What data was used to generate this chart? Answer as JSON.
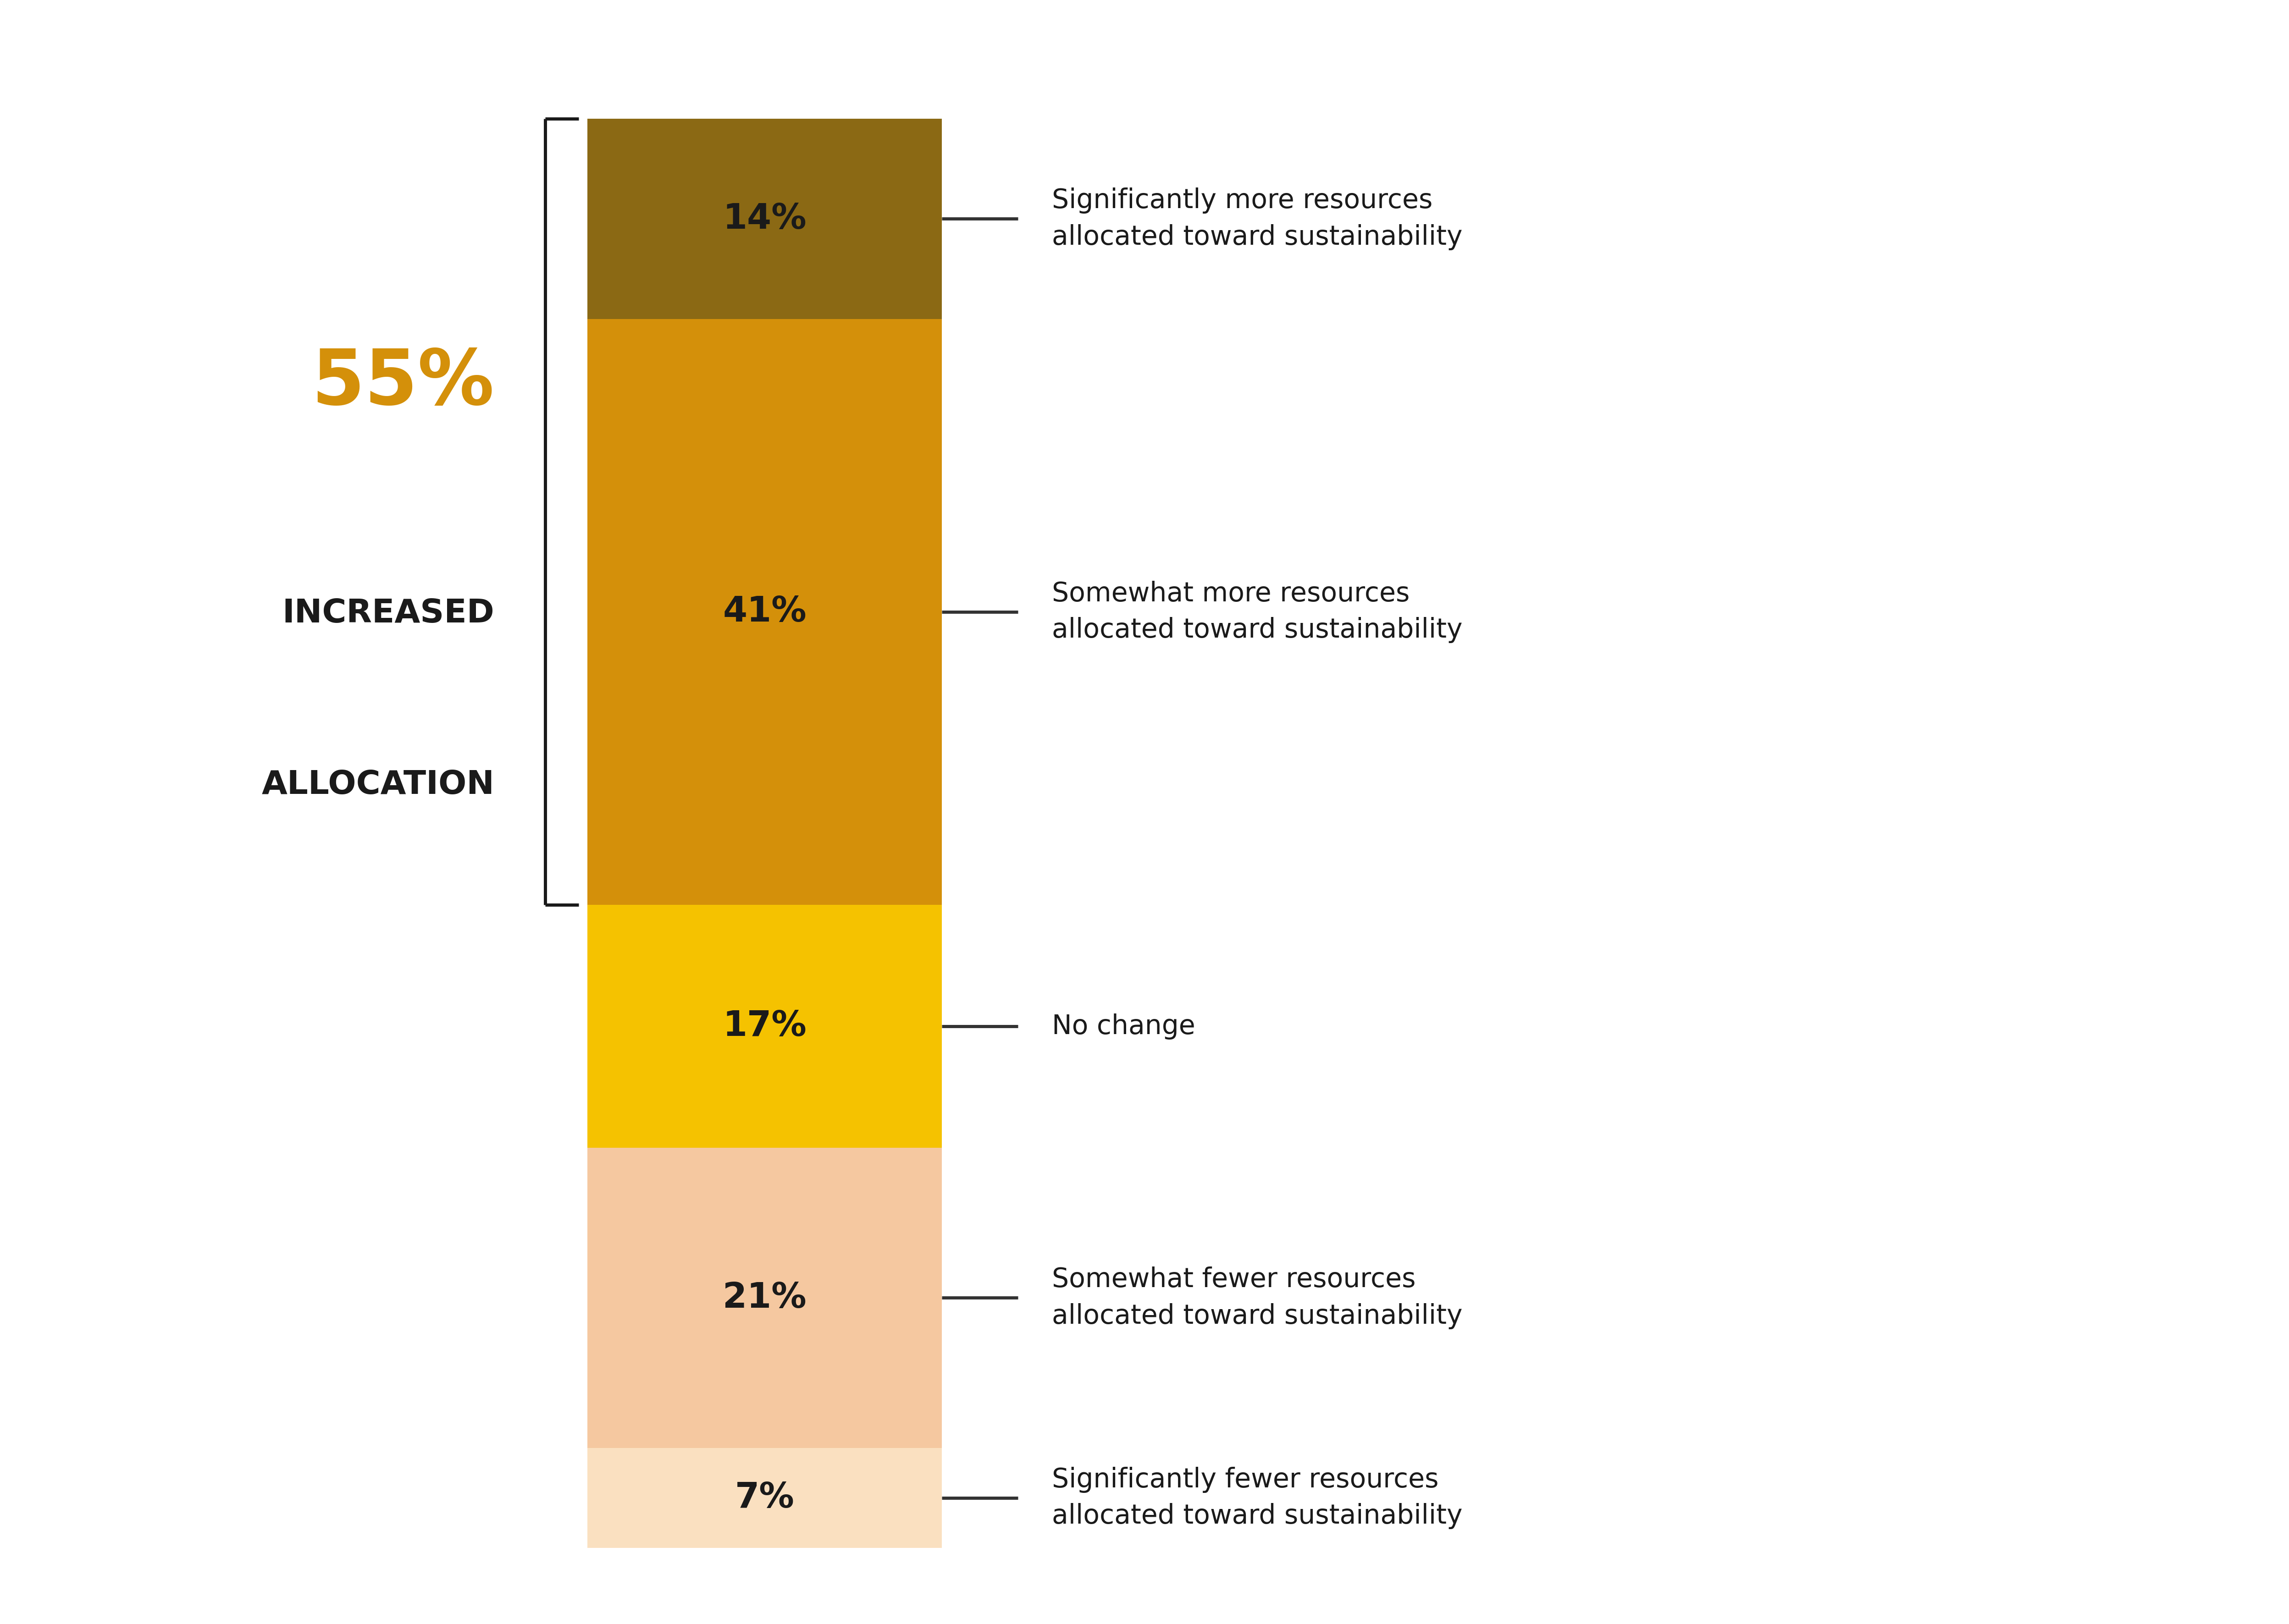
{
  "segments": [
    {
      "label": "14%",
      "value": 14,
      "color": "#8B6914",
      "annotation": "Significantly more resources\nallocated toward sustainability"
    },
    {
      "label": "41%",
      "value": 41,
      "color": "#D4900A",
      "annotation": "Somewhat more resources\nallocated toward sustainability"
    },
    {
      "label": "17%",
      "value": 17,
      "color": "#F5C200",
      "annotation": "No change"
    },
    {
      "label": "21%",
      "value": 21,
      "color": "#F5C8A0",
      "annotation": "Somewhat fewer resources\nallocated toward sustainability"
    },
    {
      "label": "7%",
      "value": 7,
      "color": "#FAE0C0",
      "annotation": "Significantly fewer resources\nallocated toward sustainability"
    }
  ],
  "big_number": "55%",
  "big_label_line1": "INCREASED",
  "big_label_line2": "ALLOCATION",
  "big_number_color": "#D4900A",
  "big_label_color": "#1A1A1A",
  "annotation_color": "#1A1A1A",
  "label_color": "#1A1A1A",
  "background_color": "#FFFFFF",
  "bar_width": 0.42,
  "bracket_color": "#1A1A1A"
}
